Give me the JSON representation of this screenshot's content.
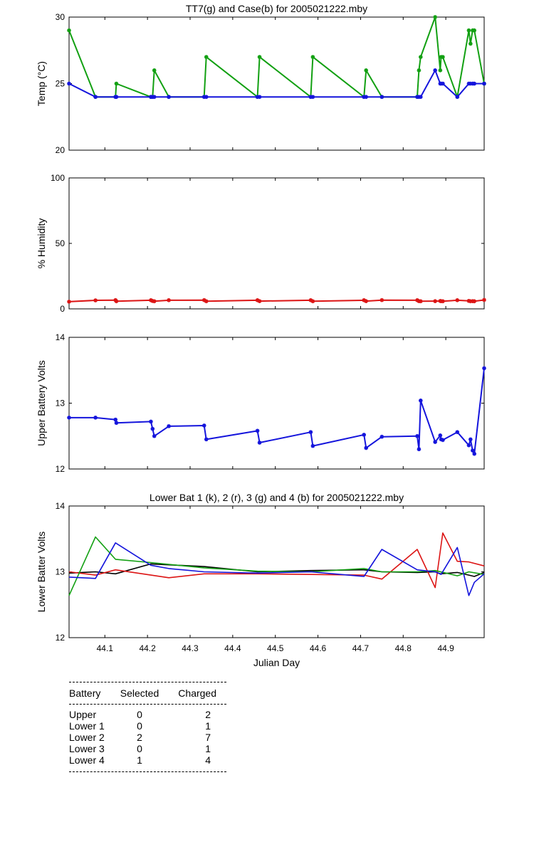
{
  "chart_data": [
    {
      "id": "temp",
      "type": "line",
      "title": "TT7(g) and Case(b) for 2005021222.mby",
      "xlabel": "",
      "ylabel": "Temp  (°C)",
      "xlim": [
        44.016,
        44.99
      ],
      "ylim": [
        20,
        30
      ],
      "yticks": [
        20,
        25,
        30
      ],
      "markers": true,
      "series": [
        {
          "color": "#12a012",
          "x": [
            44.016,
            44.078,
            44.125,
            44.127,
            44.208,
            44.212,
            44.216,
            44.25,
            44.333,
            44.338,
            44.458,
            44.463,
            44.583,
            44.588,
            44.708,
            44.713,
            44.75,
            44.833,
            44.837,
            44.841,
            44.875,
            44.887,
            44.889,
            44.893,
            44.927,
            44.954,
            44.958,
            44.963,
            44.967,
            44.99
          ],
          "y": [
            29,
            24,
            24,
            25,
            24,
            24,
            26,
            24,
            24,
            27,
            24,
            27,
            24,
            27,
            24,
            26,
            24,
            24,
            26,
            27,
            30,
            26,
            27,
            27,
            24,
            29,
            28,
            29,
            29,
            25
          ]
        },
        {
          "color": "#1414dc",
          "x": [
            44.016,
            44.078,
            44.125,
            44.127,
            44.208,
            44.212,
            44.216,
            44.25,
            44.333,
            44.338,
            44.458,
            44.463,
            44.583,
            44.588,
            44.708,
            44.713,
            44.75,
            44.833,
            44.837,
            44.841,
            44.875,
            44.887,
            44.889,
            44.893,
            44.927,
            44.954,
            44.958,
            44.963,
            44.967,
            44.99
          ],
          "y": [
            25,
            24,
            24,
            24,
            24,
            24,
            24,
            24,
            24,
            24,
            24,
            24,
            24,
            24,
            24,
            24,
            24,
            24,
            24,
            24,
            26,
            25,
            25,
            25,
            24,
            25,
            25,
            25,
            25,
            25
          ]
        }
      ]
    },
    {
      "id": "humidity",
      "type": "line",
      "title": "",
      "xlabel": "",
      "ylabel": "% Humidity",
      "xlim": [
        44.016,
        44.99
      ],
      "ylim": [
        0,
        100
      ],
      "yticks": [
        0,
        50,
        100
      ],
      "markers": true,
      "series": [
        {
          "color": "#dc1414",
          "x": [
            44.016,
            44.078,
            44.125,
            44.127,
            44.208,
            44.212,
            44.216,
            44.25,
            44.333,
            44.338,
            44.458,
            44.463,
            44.583,
            44.588,
            44.708,
            44.713,
            44.75,
            44.833,
            44.837,
            44.841,
            44.875,
            44.887,
            44.889,
            44.893,
            44.927,
            44.954,
            44.958,
            44.963,
            44.967,
            44.99
          ],
          "y": [
            5.5,
            6.5,
            6.7,
            5.8,
            6.6,
            6.0,
            5.8,
            6.6,
            6.7,
            5.8,
            6.6,
            5.9,
            6.6,
            5.8,
            6.6,
            5.9,
            6.7,
            6.6,
            5.9,
            5.8,
            5.9,
            6.0,
            5.9,
            5.8,
            6.6,
            6.1,
            5.8,
            5.9,
            5.8,
            6.8
          ]
        }
      ]
    },
    {
      "id": "upper",
      "type": "line",
      "title": "",
      "xlabel": "",
      "ylabel": "Upper Battery Volts",
      "xlim": [
        44.016,
        44.99
      ],
      "ylim": [
        12,
        14
      ],
      "yticks": [
        12,
        13,
        14
      ],
      "markers": true,
      "series": [
        {
          "color": "#1414dc",
          "x": [
            44.016,
            44.078,
            44.125,
            44.127,
            44.208,
            44.212,
            44.216,
            44.25,
            44.333,
            44.338,
            44.458,
            44.463,
            44.583,
            44.588,
            44.708,
            44.713,
            44.75,
            44.833,
            44.837,
            44.841,
            44.875,
            44.887,
            44.889,
            44.893,
            44.927,
            44.954,
            44.958,
            44.963,
            44.967,
            44.99
          ],
          "y": [
            12.78,
            12.78,
            12.75,
            12.7,
            12.72,
            12.61,
            12.5,
            12.65,
            12.66,
            12.45,
            12.58,
            12.4,
            12.56,
            12.35,
            12.52,
            12.32,
            12.49,
            12.5,
            12.3,
            13.04,
            12.41,
            12.51,
            12.45,
            12.44,
            12.56,
            12.36,
            12.45,
            12.28,
            12.23,
            13.53
          ]
        }
      ]
    },
    {
      "id": "lower",
      "type": "line",
      "title": "Lower Bat 1 (k), 2 (r), 3 (g) and 4 (b) for 2005021222.mby",
      "xlabel": "Julian Day",
      "ylabel": "Lower Batter Volts",
      "xlim": [
        44.016,
        44.99
      ],
      "ylim": [
        12,
        14
      ],
      "yticks": [
        12,
        13,
        14
      ],
      "xticks": [
        44.1,
        44.2,
        44.3,
        44.4,
        44.5,
        44.6,
        44.7,
        44.8,
        44.9
      ],
      "xticklabels": [
        "44.1",
        "44.2",
        "44.3",
        "44.4",
        "44.5",
        "44.6",
        "44.7",
        "44.8",
        "44.9"
      ],
      "markers": false,
      "series": [
        {
          "color": "#000000",
          "x": [
            44.016,
            44.078,
            44.125,
            44.208,
            44.333,
            44.458,
            44.583,
            44.708,
            44.75,
            44.833,
            44.875,
            44.887,
            44.927,
            44.954,
            44.967,
            44.99
          ],
          "y": [
            12.98,
            13.0,
            12.97,
            13.12,
            13.08,
            13.0,
            13.02,
            13.03,
            13.0,
            12.99,
            13.0,
            12.97,
            12.99,
            12.95,
            12.93,
            12.99
          ]
        },
        {
          "color": "#dc1414",
          "x": [
            44.016,
            44.078,
            44.125,
            44.208,
            44.25,
            44.333,
            44.458,
            44.583,
            44.708,
            44.75,
            44.833,
            44.875,
            44.893,
            44.927,
            44.954,
            44.99
          ],
          "y": [
            13.0,
            12.95,
            13.03,
            12.95,
            12.91,
            12.97,
            12.97,
            12.96,
            12.95,
            12.89,
            13.34,
            12.76,
            13.59,
            13.16,
            13.15,
            13.09
          ]
        },
        {
          "color": "#12a012",
          "x": [
            44.016,
            44.078,
            44.125,
            44.208,
            44.333,
            44.458,
            44.583,
            44.708,
            44.75,
            44.833,
            44.875,
            44.927,
            44.954,
            44.99
          ],
          "y": [
            12.64,
            13.53,
            13.19,
            13.14,
            13.06,
            13.01,
            13.0,
            13.05,
            13.0,
            13.0,
            13.02,
            12.94,
            13.0,
            12.96
          ]
        },
        {
          "color": "#1414dc",
          "x": [
            44.016,
            44.078,
            44.125,
            44.208,
            44.25,
            44.333,
            44.458,
            44.583,
            44.708,
            44.75,
            44.833,
            44.875,
            44.889,
            44.927,
            44.954,
            44.967,
            44.99
          ],
          "y": [
            12.92,
            12.9,
            13.44,
            13.1,
            13.05,
            13.0,
            12.98,
            13.0,
            12.93,
            13.34,
            13.03,
            13.0,
            12.96,
            13.37,
            12.64,
            12.84,
            12.97
          ]
        }
      ]
    }
  ],
  "summary": {
    "headers": [
      "Battery",
      "Selected",
      "Charged"
    ],
    "rows": [
      {
        "battery": "Upper",
        "selected": "0",
        "charged": "2"
      },
      {
        "battery": "Lower 1",
        "selected": "0",
        "charged": "1"
      },
      {
        "battery": "Lower 2",
        "selected": "2",
        "charged": "7"
      },
      {
        "battery": "Lower 3",
        "selected": "0",
        "charged": "1"
      },
      {
        "battery": "Lower 4",
        "selected": "1",
        "charged": "4"
      }
    ]
  }
}
